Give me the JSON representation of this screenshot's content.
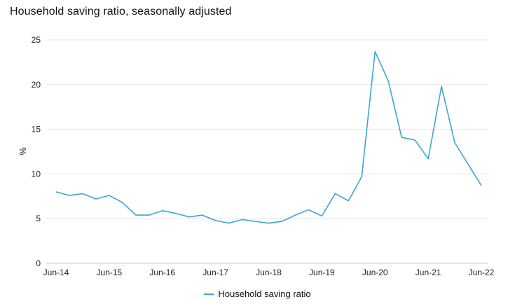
{
  "title": "Household saving ratio, seasonally adjusted",
  "chart_data": {
    "type": "line",
    "title": "Household saving ratio, seasonally adjusted",
    "xlabel": "",
    "ylabel": "%",
    "ylim": [
      0,
      25
    ],
    "yticks": [
      0,
      5,
      10,
      15,
      20,
      25
    ],
    "xtick_labels": [
      "Jun-14",
      "Jun-15",
      "Jun-16",
      "Jun-17",
      "Jun-18",
      "Jun-19",
      "Jun-20",
      "Jun-21",
      "Jun-22"
    ],
    "grid": true,
    "legend_position": "bottom-center",
    "x": [
      "Jun-14",
      "Sep-14",
      "Dec-14",
      "Mar-15",
      "Jun-15",
      "Sep-15",
      "Dec-15",
      "Mar-16",
      "Jun-16",
      "Sep-16",
      "Dec-16",
      "Mar-17",
      "Jun-17",
      "Sep-17",
      "Dec-17",
      "Mar-18",
      "Jun-18",
      "Sep-18",
      "Dec-18",
      "Mar-19",
      "Jun-19",
      "Sep-19",
      "Dec-19",
      "Mar-20",
      "Jun-20",
      "Sep-20",
      "Dec-20",
      "Mar-21",
      "Jun-21",
      "Sep-21",
      "Dec-21",
      "Mar-22",
      "Jun-22"
    ],
    "series": [
      {
        "name": "Household saving ratio",
        "color": "#3da5d4",
        "values": [
          8.0,
          7.6,
          7.8,
          7.2,
          7.6,
          6.8,
          5.4,
          5.4,
          5.9,
          5.6,
          5.2,
          5.4,
          4.8,
          4.5,
          4.9,
          4.7,
          4.5,
          4.7,
          5.4,
          6.0,
          5.3,
          7.8,
          7.0,
          9.7,
          23.7,
          20.4,
          14.1,
          13.8,
          11.7,
          19.8,
          13.5,
          11.1,
          8.7
        ]
      }
    ]
  }
}
